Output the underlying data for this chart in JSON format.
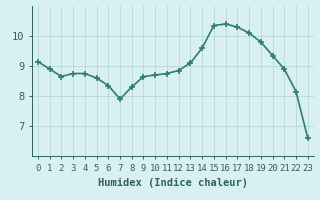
{
  "x": [
    0,
    1,
    2,
    3,
    4,
    5,
    6,
    7,
    8,
    9,
    10,
    11,
    12,
    13,
    14,
    15,
    16,
    17,
    18,
    19,
    20,
    21,
    22,
    23
  ],
  "y": [
    9.15,
    8.9,
    8.65,
    8.75,
    8.75,
    8.6,
    8.35,
    7.9,
    8.3,
    8.65,
    8.7,
    8.75,
    8.85,
    9.1,
    9.6,
    10.35,
    10.4,
    10.3,
    10.1,
    9.8,
    9.35,
    8.9,
    8.15,
    6.6
  ],
  "line_color": "#2e7d6e",
  "marker": "+",
  "markersize": 5,
  "markeredgewidth": 1.2,
  "linewidth": 1.2,
  "bg_color": "#d9f0f0",
  "grid_color": "#b8d8d8",
  "xlabel": "Humidex (Indice chaleur)",
  "ylabel": "",
  "xlim": [
    -0.5,
    23.5
  ],
  "ylim": [
    6.0,
    11.0
  ],
  "yticks": [
    7,
    8,
    9,
    10
  ],
  "xticks": [
    0,
    1,
    2,
    3,
    4,
    5,
    6,
    7,
    8,
    9,
    10,
    11,
    12,
    13,
    14,
    15,
    16,
    17,
    18,
    19,
    20,
    21,
    22,
    23
  ],
  "tick_labelsize": 6.5,
  "xlabel_fontsize": 7.5,
  "ytick_labelsize": 7.5
}
